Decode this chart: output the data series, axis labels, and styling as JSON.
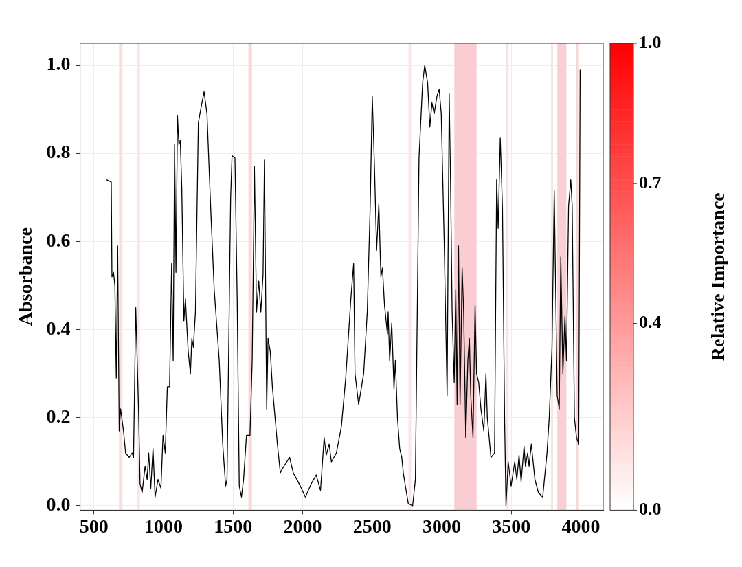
{
  "chart_data": {
    "type": "line",
    "ylabel": "Absorbance",
    "clabel": "Relative Importance",
    "clim": [
      0,
      1
    ],
    "cticks": [
      {
        "value": 0,
        "label": "0.0"
      },
      0.4,
      0.7,
      {
        "value": 1,
        "label": "1.0"
      }
    ],
    "xlim": [
      400,
      4160
    ],
    "ylim": [
      -0.01,
      1.05
    ],
    "xticks": [
      500,
      1000,
      1500,
      2000,
      2500,
      3000,
      3500,
      4000
    ],
    "yticks": [
      {
        "value": 0,
        "label": "0.0"
      },
      0.2,
      0.4,
      0.6,
      0.8,
      {
        "value": 1,
        "label": "1.0"
      }
    ],
    "grid": true,
    "legend": false,
    "marker": "none",
    "line_style": "solid",
    "series": [
      {
        "color": "#000000",
        "x": [
          590,
          624,
          629,
          640,
          650,
          660,
          670,
          681,
          691,
          712,
          727,
          753,
          774,
          784,
          800,
          820,
          831,
          846,
          867,
          882,
          893,
          908,
          924,
          939,
          960,
          981,
          996,
          1012,
          1027,
          1043,
          1058,
          1069,
          1079,
          1089,
          1100,
          1110,
          1120,
          1131,
          1146,
          1157,
          1177,
          1193,
          1203,
          1214,
          1229,
          1250,
          1270,
          1291,
          1312,
          1338,
          1364,
          1400,
          1425,
          1446,
          1456,
          1482,
          1492,
          1513,
          1529,
          1544,
          1560,
          1575,
          1596,
          1621,
          1637,
          1653,
          1668,
          1684,
          1699,
          1715,
          1725,
          1741,
          1751,
          1767,
          1782,
          1818,
          1839,
          1865,
          1906,
          1932,
          1983,
          2019,
          2061,
          2097,
          2128,
          2154,
          2169,
          2190,
          2206,
          2242,
          2278,
          2309,
          2346,
          2366,
          2376,
          2402,
          2438,
          2464,
          2485,
          2500,
          2516,
          2531,
          2547,
          2562,
          2573,
          2588,
          2609,
          2614,
          2625,
          2640,
          2656,
          2666,
          2681,
          2697,
          2712,
          2723,
          2738,
          2759,
          2790,
          2810,
          2836,
          2862,
          2877,
          2898,
          2914,
          2929,
          2945,
          2965,
          2981,
          2996,
          3017,
          3038,
          3053,
          3063,
          3074,
          3089,
          3100,
          3110,
          3120,
          3131,
          3146,
          3157,
          3172,
          3187,
          3198,
          3208,
          3224,
          3239,
          3250,
          3265,
          3281,
          3302,
          3317,
          3327,
          3353,
          3379,
          3394,
          3405,
          3420,
          3436,
          3451,
          3461,
          3477,
          3498,
          3524,
          3539,
          3555,
          3570,
          3591,
          3601,
          3617,
          3627,
          3643,
          3669,
          3694,
          3725,
          3756,
          3772,
          3792,
          3808,
          3829,
          3844,
          3855,
          3870,
          3885,
          3896,
          3911,
          3927,
          3937,
          3953,
          3968,
          3984,
          3994
        ],
        "values": [
          0.74,
          0.735,
          0.52,
          0.53,
          0.5,
          0.29,
          0.59,
          0.17,
          0.22,
          0.17,
          0.12,
          0.11,
          0.12,
          0.11,
          0.45,
          0.22,
          0.05,
          0.03,
          0.09,
          0.06,
          0.12,
          0.04,
          0.13,
          0.02,
          0.06,
          0.04,
          0.16,
          0.12,
          0.27,
          0.27,
          0.55,
          0.33,
          0.82,
          0.53,
          0.885,
          0.82,
          0.83,
          0.72,
          0.42,
          0.47,
          0.35,
          0.3,
          0.38,
          0.36,
          0.44,
          0.87,
          0.905,
          0.94,
          0.89,
          0.68,
          0.49,
          0.33,
          0.14,
          0.045,
          0.06,
          0.7,
          0.795,
          0.79,
          0.47,
          0.045,
          0.02,
          0.06,
          0.16,
          0.16,
          0.33,
          0.77,
          0.44,
          0.51,
          0.44,
          0.525,
          0.785,
          0.22,
          0.38,
          0.35,
          0.27,
          0.14,
          0.075,
          0.09,
          0.11,
          0.075,
          0.045,
          0.02,
          0.05,
          0.07,
          0.035,
          0.155,
          0.115,
          0.14,
          0.1,
          0.12,
          0.18,
          0.29,
          0.47,
          0.55,
          0.3,
          0.23,
          0.3,
          0.44,
          0.68,
          0.93,
          0.77,
          0.58,
          0.685,
          0.52,
          0.54,
          0.455,
          0.39,
          0.44,
          0.33,
          0.415,
          0.265,
          0.33,
          0.2,
          0.13,
          0.11,
          0.075,
          0.045,
          0.005,
          0.0,
          0.06,
          0.79,
          0.96,
          1.0,
          0.96,
          0.86,
          0.915,
          0.89,
          0.93,
          0.945,
          0.89,
          0.6,
          0.25,
          0.935,
          0.73,
          0.44,
          0.28,
          0.49,
          0.23,
          0.59,
          0.23,
          0.54,
          0.44,
          0.155,
          0.33,
          0.38,
          0.25,
          0.155,
          0.455,
          0.3,
          0.28,
          0.22,
          0.17,
          0.3,
          0.2,
          0.11,
          0.12,
          0.74,
          0.63,
          0.835,
          0.675,
          0.2,
          0.0,
          0.1,
          0.045,
          0.1,
          0.06,
          0.115,
          0.055,
          0.135,
          0.09,
          0.12,
          0.09,
          0.14,
          0.06,
          0.03,
          0.02,
          0.12,
          0.2,
          0.36,
          0.715,
          0.25,
          0.22,
          0.565,
          0.3,
          0.43,
          0.33,
          0.68,
          0.74,
          0.68,
          0.2,
          0.155,
          0.14,
          0.99
        ]
      }
    ],
    "bands": [
      {
        "axis": "x",
        "from": 680,
        "to": 705,
        "color": "#f9dede"
      },
      {
        "axis": "x",
        "from": 810,
        "to": 830,
        "color": "#fbe6e6"
      },
      {
        "axis": "x",
        "from": 1610,
        "to": 1635,
        "color": "#f9d8d8"
      },
      {
        "axis": "x",
        "from": 2760,
        "to": 2780,
        "color": "#fbe6e6"
      },
      {
        "axis": "x",
        "from": 3090,
        "to": 3250,
        "color": "#f9cdd2"
      },
      {
        "axis": "x",
        "from": 3460,
        "to": 3480,
        "color": "#fbe3e3"
      },
      {
        "axis": "x",
        "from": 3785,
        "to": 3800,
        "color": "#fbe3e3"
      },
      {
        "axis": "x",
        "from": 3830,
        "to": 3895,
        "color": "#f9cfd4"
      },
      {
        "axis": "x",
        "from": 3965,
        "to": 3985,
        "color": "#f9d5d8"
      }
    ]
  }
}
